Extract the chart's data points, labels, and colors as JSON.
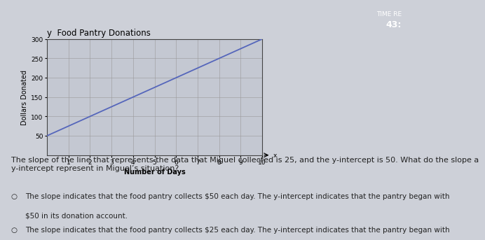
{
  "title": "Food Pantry Donations",
  "xlabel": "Number of Days",
  "ylabel": "Dollars Donated",
  "slope": 25,
  "y_intercept": 50,
  "x_min": 0,
  "x_max": 10,
  "y_min": 0,
  "y_max": 300,
  "x_ticks": [
    1,
    2,
    3,
    4,
    5,
    6,
    7,
    8,
    9,
    10
  ],
  "y_ticks": [
    50,
    100,
    150,
    200,
    250,
    300
  ],
  "line_color": "#5566bb",
  "grid_color": "#999999",
  "bg_color": "#cdd0d8",
  "plot_bg": "#c4c8d2",
  "header_bg": "#3a3f55",
  "timer_line1": "TIME RE",
  "timer_line2": "43:",
  "timer_color": "#ffffff",
  "question_text": "The slope of the line that represents the data that Miguel collected is 25, and the y-intercept is 50. What do the slope a\ny-intercept represent in Miguel’s situation?",
  "answer1_prefix": "The slope indicates that the food pantry collects $50 each day. The y-intercept indicates that the pantry began with",
  "answer1_suffix": "$50 in its donation account.",
  "answer2": "The slope indicates that the food pantry collects $25 each day. The y-intercept indicates that the pantry began with",
  "text_color": "#222222",
  "font_size_question": 8.0,
  "font_size_answer": 7.5,
  "font_size_tick": 6.5,
  "font_size_label": 7.0,
  "font_size_title": 8.5
}
